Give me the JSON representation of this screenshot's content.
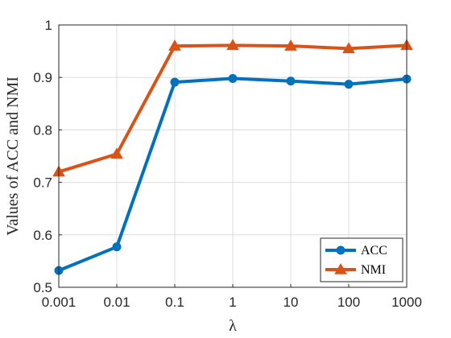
{
  "chart_data": {
    "type": "line",
    "x": [
      "0.001",
      "0.01",
      "0.1",
      "1",
      "10",
      "100",
      "1000"
    ],
    "xlabel": "λ",
    "ylabel": "Values of ACC and NMI",
    "ylim": [
      0.5,
      1.0
    ],
    "yticks": [
      "0.5",
      "0.6",
      "0.7",
      "0.8",
      "0.9",
      "1"
    ],
    "grid": true,
    "legend_position": "bottom-right",
    "series": [
      {
        "name": "ACC",
        "color": "#0072BD",
        "marker": "circle",
        "values": [
          0.532,
          0.577,
          0.891,
          0.898,
          0.893,
          0.887,
          0.897
        ]
      },
      {
        "name": "NMI",
        "color": "#D95319",
        "marker": "triangle",
        "values": [
          0.72,
          0.754,
          0.96,
          0.961,
          0.96,
          0.955,
          0.961
        ]
      }
    ]
  }
}
